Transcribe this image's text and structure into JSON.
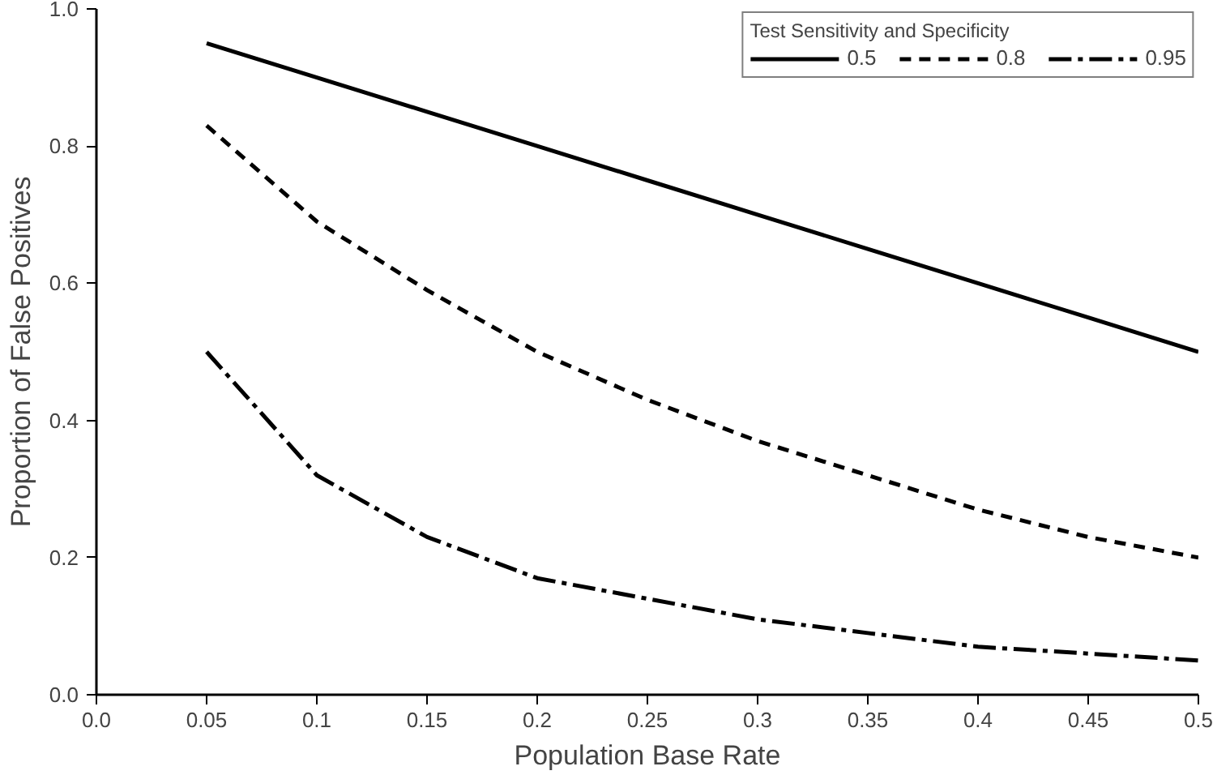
{
  "chart_data": {
    "type": "line",
    "xlabel": "Population Base Rate",
    "ylabel": "Proportion of False Positives",
    "legend_title": "Test Sensitivity and Specificity",
    "legend": "top right",
    "grid": false,
    "marker": "none",
    "x": [
      0.05,
      0.1,
      0.15,
      0.2,
      0.25,
      0.3,
      0.35,
      0.4,
      0.45,
      0.5
    ],
    "xlim": [
      0.0,
      0.5
    ],
    "xticks": [
      {
        "value": 0.0,
        "label": "0.0"
      },
      0.05,
      0.1,
      0.15,
      0.2,
      0.25,
      0.3,
      0.35,
      0.4,
      0.45,
      0.5
    ],
    "ylim": [
      0.0,
      1.0
    ],
    "yticks": [
      {
        "value": 0.0,
        "label": "0.0"
      },
      0.2,
      0.4,
      0.6,
      0.8,
      {
        "value": 1.0,
        "label": "1.0"
      }
    ],
    "series": [
      {
        "name": "0.5",
        "color": "#000000",
        "line_style": "solid",
        "values": [
          0.95,
          0.9,
          0.85,
          0.8,
          0.75,
          0.7,
          0.65,
          0.6,
          0.55,
          0.5
        ]
      },
      {
        "name": "0.8",
        "color": "#000000",
        "line_style": "dashed",
        "values": [
          0.83,
          0.69,
          0.59,
          0.5,
          0.43,
          0.37,
          0.32,
          0.27,
          0.23,
          0.2
        ]
      },
      {
        "name": "0.95",
        "color": "#000000",
        "line_style": "dashdot",
        "values": [
          0.5,
          0.32,
          0.23,
          0.17,
          0.14,
          0.11,
          0.09,
          0.07,
          0.06,
          0.05
        ]
      }
    ]
  }
}
